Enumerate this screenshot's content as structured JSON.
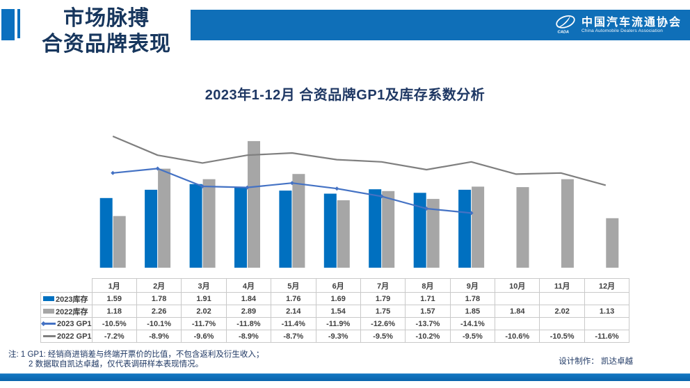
{
  "header": {
    "title_line1": "市场脉搏",
    "title_line2": "合资品牌表现",
    "org_cn": "中国汽车流通协会",
    "org_en": "China Automobile Dealers Association",
    "logo_abbr": "CADA"
  },
  "chart_title": "2023年1-12月 合资品牌GP1及库存系数分析",
  "chart_data": {
    "type": "bar+line combo, dual hidden axes, no gridlines, legend in left table column",
    "categories": [
      "1月",
      "2月",
      "3月",
      "4月",
      "5月",
      "6月",
      "7月",
      "8月",
      "9月",
      "10月",
      "11月",
      "12月"
    ],
    "series": [
      {
        "name": "2023库存",
        "kind": "bar",
        "color": "#0070C0",
        "format": "num2",
        "values": [
          1.59,
          1.78,
          1.91,
          1.84,
          1.76,
          1.69,
          1.79,
          1.71,
          1.78,
          null,
          null,
          null
        ]
      },
      {
        "name": "2022库存",
        "kind": "bar",
        "color": "#A6A6A6",
        "format": "num2",
        "values": [
          1.18,
          2.26,
          2.02,
          2.89,
          2.14,
          1.54,
          1.75,
          1.57,
          1.85,
          1.84,
          2.02,
          1.13
        ]
      },
      {
        "name": "2023 GP1",
        "kind": "line",
        "color": "#4472C4",
        "marker": "diamond",
        "format": "pct1",
        "values": [
          -10.5,
          -10.1,
          -11.7,
          -11.8,
          -11.4,
          -11.9,
          -12.6,
          -13.7,
          -14.1,
          null,
          null,
          null
        ]
      },
      {
        "name": "2022 GP1",
        "kind": "line",
        "color": "#7F7F7F",
        "marker": "none",
        "format": "pct1",
        "values": [
          -7.2,
          -8.9,
          -9.6,
          -8.9,
          -8.7,
          -9.3,
          -9.5,
          -10.2,
          -9.5,
          -10.6,
          -10.5,
          -11.6
        ]
      }
    ],
    "bar_axis_range": [
      0,
      3.2
    ],
    "line_axis_range_pct": [
      -16,
      -6
    ],
    "grid": false
  },
  "notes": {
    "line1": "注: 1 GP1: 经销商进销差与终端开票价的比值，不包含返利及衍生收入；",
    "line2": "2 数据取自凯达卓越，仅代表调研样本表现情况。",
    "credit": "设计制作： 凯达卓越"
  },
  "colors": {
    "accent_blue": "#0B70BF",
    "banner_blue": "#0F6FB8",
    "title_navy": "#17365D",
    "chart_title_navy": "#1F3864",
    "bar_2023": "#0070C0",
    "bar_2022": "#A6A6A6",
    "line_2023": "#4472C4",
    "line_2022": "#7F7F7F",
    "table_border": "#C9C9C9",
    "table_text": "#3F3F3F"
  }
}
